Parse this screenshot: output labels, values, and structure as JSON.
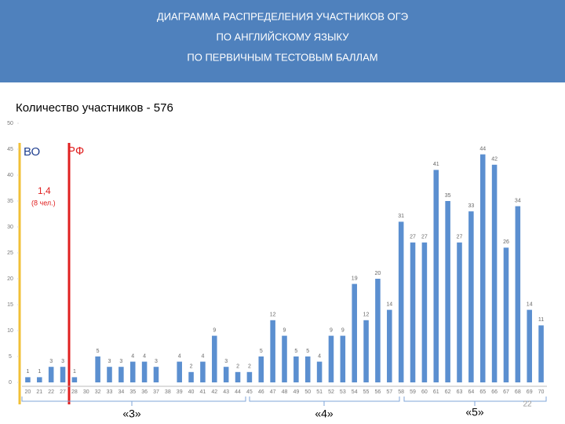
{
  "chart_data": {
    "type": "bar",
    "title": [
      "ДИАГРАММА РАСПРЕДЕЛЕНИЯ УЧАСТНИКОВ ОГЭ",
      "ПО АНГЛИЙСКОМУ ЯЗЫКУ",
      "ПО ПЕРВИЧНЫМ ТЕСТОВЫМ БАЛЛАМ"
    ],
    "subtitle": "Количество участников - 576",
    "categories": [
      "20",
      "21",
      "22",
      "27",
      "28",
      "30",
      "32",
      "33",
      "34",
      "35",
      "36",
      "37",
      "38",
      "39",
      "40",
      "41",
      "42",
      "43",
      "44",
      "45",
      "46",
      "47",
      "48",
      "49",
      "50",
      "51",
      "52",
      "53",
      "54",
      "55",
      "56",
      "57",
      "58",
      "59",
      "60",
      "61",
      "62",
      "63",
      "64",
      "65",
      "66",
      "67",
      "68",
      "69",
      "70"
    ],
    "values": [
      1,
      1,
      3,
      3,
      1,
      null,
      5,
      3,
      3,
      4,
      4,
      3,
      null,
      4,
      2,
      4,
      9,
      3,
      2,
      2,
      5,
      12,
      9,
      5,
      5,
      4,
      9,
      9,
      19,
      12,
      20,
      14,
      31,
      27,
      27,
      41,
      35,
      27,
      33,
      44,
      42,
      26,
      34,
      14,
      11
    ],
    "color": "#5b8fd0",
    "ylim": [
      0,
      50
    ],
    "yticks": [
      0,
      5,
      10,
      15,
      20,
      25,
      30,
      35,
      40,
      45,
      50
    ],
    "annotations": [
      "ВО",
      "РФ",
      "1,4",
      "(8 чел.)"
    ],
    "grade_labels": [
      "«3»",
      "«4»",
      "«5»"
    ],
    "page_number": "22"
  }
}
